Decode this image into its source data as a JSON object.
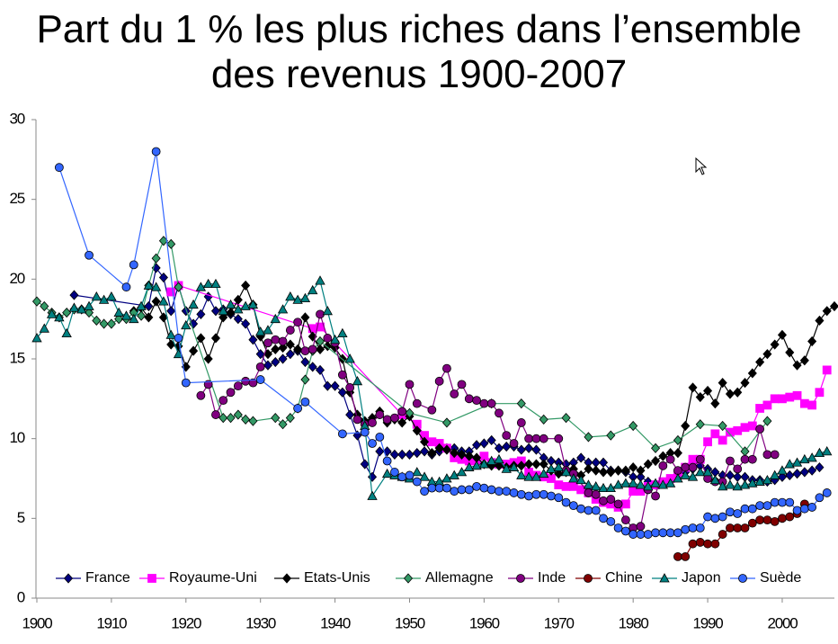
{
  "chart_data": {
    "type": "line",
    "title": "Part du 1 % les plus riches dans l’ensemble des revenus 1900-2007",
    "xlim": [
      1900,
      2007
    ],
    "xticks": [
      1900,
      1910,
      1920,
      1930,
      1940,
      1950,
      1960,
      1970,
      1980,
      1990,
      2000
    ],
    "ylim": [
      0,
      30
    ],
    "yticks": [
      0,
      5,
      10,
      15,
      20,
      25,
      30
    ],
    "grid": false,
    "legend": "bottom",
    "series": [
      {
        "name": "France",
        "color": "#000080",
        "marker": "diamond",
        "x": [
          1905,
          1915,
          1916,
          1917,
          1918,
          1919,
          1920,
          1921,
          1922,
          1923,
          1924,
          1925,
          1926,
          1927,
          1928,
          1929,
          1930,
          1931,
          1932,
          1933,
          1934,
          1935,
          1936,
          1937,
          1938,
          1939,
          1940,
          1941,
          1942,
          1943,
          1944,
          1945,
          1946,
          1947,
          1948,
          1949,
          1950,
          1951,
          1952,
          1953,
          1954,
          1955,
          1956,
          1957,
          1958,
          1959,
          1960,
          1961,
          1962,
          1963,
          1964,
          1965,
          1966,
          1967,
          1968,
          1969,
          1970,
          1971,
          1972,
          1973,
          1974,
          1975,
          1976,
          1977,
          1978,
          1979,
          1980,
          1981,
          1982,
          1983,
          1984,
          1985,
          1986,
          1987,
          1988,
          1989,
          1990,
          1991,
          1992,
          1993,
          1994,
          1995,
          1996,
          1997,
          1998,
          1999,
          2000,
          2001,
          2002,
          2003,
          2004,
          2005
        ],
        "values": [
          19,
          18.3,
          20.7,
          20.1,
          18,
          19.6,
          18,
          17.2,
          17.8,
          18.9,
          18,
          18.1,
          17.8,
          17.5,
          17.2,
          16.2,
          15.3,
          14.6,
          14.8,
          15,
          15.3,
          15.5,
          14.8,
          14.5,
          14.3,
          13.3,
          13.3,
          12.9,
          11.5,
          10.2,
          8.4,
          7.6,
          9.2,
          9.2,
          9,
          9,
          9,
          9.1,
          9.2,
          9,
          9.2,
          9.4,
          9.4,
          9.2,
          9.2,
          9.6,
          9.7,
          9.9,
          9.4,
          9.5,
          9.5,
          9.3,
          9.4,
          9.3,
          8.8,
          8.6,
          8.5,
          8.4,
          8.5,
          8.8,
          8.5,
          8.5,
          8.5,
          8,
          8,
          7.9,
          7.6,
          7.6,
          7.3,
          7.1,
          7.2,
          7.4,
          7.7,
          7.9,
          8.1,
          8.3,
          8.1,
          7.9,
          7.7,
          7.7,
          7.6,
          7.6,
          7.4,
          7.4,
          7.3,
          7.4,
          7.6,
          7.7,
          7.8,
          7.9,
          8,
          8.2
        ]
      },
      {
        "name": "Royaume-Uni",
        "color": "#ff00ff",
        "marker": "square",
        "x": [
          1918,
          1919,
          1937,
          1938,
          1949,
          1951,
          1952,
          1953,
          1954,
          1955,
          1956,
          1957,
          1958,
          1959,
          1960,
          1961,
          1962,
          1963,
          1964,
          1965,
          1966,
          1967,
          1968,
          1969,
          1970,
          1971,
          1972,
          1973,
          1974,
          1975,
          1976,
          1977,
          1978,
          1979,
          1980,
          1981,
          1982,
          1983,
          1984,
          1985,
          1986,
          1987,
          1988,
          1989,
          1990,
          1991,
          1992,
          1993,
          1994,
          1995,
          1996,
          1997,
          1998,
          1999,
          2000,
          2001,
          2002,
          2003,
          2004,
          2005,
          2006
        ],
        "values": [
          19.2,
          19.6,
          16.9,
          17,
          11.5,
          10.9,
          10.2,
          9.8,
          9.7,
          9.4,
          8.8,
          8.7,
          8.6,
          8.6,
          8.9,
          8.5,
          8.4,
          8.4,
          8.5,
          8.6,
          7.9,
          7.7,
          7.6,
          7.5,
          7.1,
          7,
          7,
          6.8,
          6.6,
          6.2,
          6,
          5.9,
          5.7,
          5.9,
          6.7,
          6.7,
          7,
          7.1,
          7.3,
          7.5,
          7.8,
          8.2,
          8.7,
          8.7,
          9.8,
          10.3,
          9.9,
          10.4,
          10.5,
          10.7,
          10.8,
          11.9,
          12.1,
          12.5,
          12.5,
          12.6,
          12.7,
          12.2,
          12.1,
          12.9,
          14.3
        ]
      },
      {
        "name": "Etats-Unis",
        "color": "#000000",
        "marker": "diamond",
        "x": [
          1913,
          1914,
          1915,
          1916,
          1917,
          1918,
          1919,
          1920,
          1921,
          1922,
          1923,
          1924,
          1925,
          1926,
          1927,
          1928,
          1929,
          1930,
          1931,
          1932,
          1933,
          1934,
          1935,
          1936,
          1937,
          1938,
          1939,
          1940,
          1941,
          1942,
          1943,
          1944,
          1945,
          1946,
          1947,
          1948,
          1949,
          1950,
          1951,
          1952,
          1953,
          1954,
          1955,
          1956,
          1957,
          1958,
          1959,
          1960,
          1961,
          1962,
          1963,
          1964,
          1965,
          1966,
          1967,
          1968,
          1969,
          1970,
          1971,
          1972,
          1973,
          1974,
          1975,
          1976,
          1977,
          1978,
          1979,
          1980,
          1981,
          1982,
          1983,
          1984,
          1985,
          1986,
          1987,
          1988,
          1989,
          1990,
          1991,
          1992,
          1993,
          1994,
          1995,
          1996,
          1997,
          1998,
          1999,
          2000,
          2001,
          2002,
          2003,
          2004,
          2005,
          2006,
          2007
        ],
        "values": [
          18,
          18.2,
          17.6,
          18.6,
          17.6,
          15.9,
          15.8,
          14.5,
          15.5,
          16.3,
          15,
          16.3,
          17.6,
          17.9,
          18.7,
          19.6,
          18.4,
          16.4,
          15.3,
          15.6,
          15.7,
          15.9,
          15.6,
          17.6,
          16.4,
          15.6,
          15.8,
          15.7,
          15,
          12.9,
          11.5,
          11.1,
          11.3,
          11.7,
          11,
          11.2,
          11,
          11.4,
          10.5,
          9.8,
          9.1,
          9.4,
          9.3,
          9.1,
          9,
          8.9,
          8.8,
          8.4,
          8.3,
          8.3,
          8.2,
          8.3,
          8.3,
          8.4,
          8.4,
          8.4,
          8,
          7.8,
          7.9,
          8.1,
          7.7,
          8.1,
          8,
          7.9,
          7.9,
          8,
          8,
          8.2,
          8,
          8.4,
          8.6,
          8.9,
          9.1,
          9.1,
          10.8,
          13.2,
          12.6,
          13,
          12.2,
          13.5,
          12.8,
          12.9,
          13.5,
          14.1,
          14.8,
          15.3,
          15.9,
          16.5,
          15.4,
          14.6,
          14.9,
          16.1,
          17.4,
          18,
          18.3
        ]
      },
      {
        "name": "Allemagne",
        "color": "#339966",
        "marker": "diamond",
        "x": [
          1900,
          1901,
          1902,
          1903,
          1904,
          1905,
          1906,
          1907,
          1908,
          1909,
          1910,
          1911,
          1912,
          1913,
          1914,
          1915,
          1916,
          1917,
          1918,
          1919,
          1925,
          1926,
          1927,
          1928,
          1929,
          1932,
          1933,
          1934,
          1935,
          1936,
          1937,
          1938,
          1950,
          1955,
          1961,
          1965,
          1968,
          1971,
          1974,
          1977,
          1980,
          1983,
          1986,
          1989,
          1992,
          1995,
          1998
        ],
        "values": [
          18.6,
          18.3,
          17.9,
          17.6,
          17.9,
          18.1,
          18.1,
          17.9,
          17.4,
          17.2,
          17.2,
          17.5,
          17.5,
          17.9,
          17.7,
          19.6,
          21.3,
          22.4,
          22.2,
          19.5,
          11.3,
          11.3,
          11.5,
          11.2,
          11.1,
          11.3,
          10.9,
          11.3,
          11.9,
          13.7,
          15.5,
          16.1,
          11.6,
          11,
          12.2,
          12.2,
          11.2,
          11.3,
          10.1,
          10.2,
          10.8,
          9.4,
          9.9,
          10.9,
          10.8,
          9.2,
          11.1
        ]
      },
      {
        "name": "Inde",
        "color": "#800080",
        "marker": "circle",
        "x": [
          1922,
          1923,
          1924,
          1925,
          1926,
          1927,
          1928,
          1929,
          1930,
          1931,
          1932,
          1933,
          1934,
          1935,
          1936,
          1937,
          1938,
          1939,
          1940,
          1941,
          1942,
          1943,
          1944,
          1945,
          1946,
          1947,
          1948,
          1949,
          1950,
          1951,
          1953,
          1954,
          1955,
          1956,
          1957,
          1958,
          1959,
          1960,
          1961,
          1962,
          1963,
          1964,
          1965,
          1966,
          1967,
          1968,
          1970,
          1971,
          1972,
          1974,
          1975,
          1976,
          1977,
          1978,
          1979,
          1980,
          1981,
          1982,
          1983,
          1984,
          1985,
          1986,
          1987,
          1988,
          1989,
          1990,
          1991,
          1992,
          1993,
          1994,
          1995,
          1996,
          1997,
          1998,
          1999
        ],
        "values": [
          12.7,
          13.4,
          11.5,
          12.4,
          12.9,
          13.3,
          13.6,
          13.5,
          14.5,
          16,
          16.2,
          16.1,
          16.8,
          17.3,
          15.5,
          15.6,
          17.8,
          16.3,
          16,
          14,
          13.2,
          11.2,
          10.9,
          11,
          11.5,
          11.2,
          11.3,
          11.7,
          13.4,
          12.2,
          11.8,
          13.6,
          14.4,
          12.8,
          13.4,
          12.5,
          12.4,
          12.2,
          12.2,
          11.6,
          10.2,
          9.7,
          11,
          10,
          10,
          10,
          10,
          8,
          7.8,
          6.6,
          6.5,
          6.1,
          6.2,
          5.9,
          4.9,
          4.4,
          4.5,
          6.8,
          6.4,
          8.3,
          8.7,
          8,
          8.2,
          8.2,
          8.7,
          7.5,
          7.3,
          7.3,
          8.6,
          8.1,
          8.7,
          8.7,
          10.6,
          9,
          9
        ]
      },
      {
        "name": "Chine",
        "color": "#800000",
        "marker": "circle",
        "x": [
          1986,
          1987,
          1988,
          1989,
          1990,
          1991,
          1992,
          1993,
          1994,
          1995,
          1996,
          1997,
          1998,
          1999,
          2000,
          2001,
          2002,
          2003
        ],
        "values": [
          2.6,
          2.6,
          3.4,
          3.5,
          3.4,
          3.4,
          4,
          4.4,
          4.4,
          4.4,
          4.7,
          4.9,
          4.9,
          4.8,
          5,
          5.1,
          5.3,
          5.9
        ]
      },
      {
        "name": "Japon",
        "color": "#008080",
        "marker": "triangle",
        "x": [
          1900,
          1901,
          1902,
          1903,
          1904,
          1905,
          1906,
          1907,
          1908,
          1909,
          1910,
          1911,
          1912,
          1913,
          1914,
          1915,
          1916,
          1917,
          1918,
          1919,
          1920,
          1921,
          1922,
          1923,
          1924,
          1925,
          1926,
          1927,
          1928,
          1929,
          1930,
          1931,
          1932,
          1933,
          1934,
          1935,
          1936,
          1937,
          1938,
          1939,
          1940,
          1941,
          1942,
          1943,
          1944,
          1945,
          1947,
          1948,
          1949,
          1950,
          1951,
          1952,
          1953,
          1954,
          1955,
          1956,
          1957,
          1958,
          1959,
          1960,
          1961,
          1962,
          1963,
          1964,
          1965,
          1966,
          1967,
          1968,
          1969,
          1970,
          1971,
          1972,
          1973,
          1974,
          1975,
          1976,
          1977,
          1978,
          1979,
          1980,
          1981,
          1982,
          1983,
          1984,
          1985,
          1986,
          1987,
          1988,
          1989,
          1990,
          1991,
          1992,
          1993,
          1994,
          1995,
          1996,
          1997,
          1998,
          1999,
          2000,
          2001,
          2002,
          2003,
          2004,
          2005,
          2006
        ],
        "values": [
          16.3,
          16.9,
          17.8,
          17.6,
          16.6,
          18.2,
          18.1,
          18.3,
          18.9,
          18.7,
          18.9,
          17.9,
          17.7,
          17.5,
          18.3,
          19.6,
          19.5,
          18.6,
          16.5,
          15.3,
          17.1,
          18.4,
          19.5,
          19.7,
          19.7,
          18,
          18.4,
          18.1,
          18.3,
          18.4,
          16.7,
          16.8,
          17.5,
          18.1,
          18.9,
          18.7,
          18.8,
          19.3,
          19.9,
          18,
          16.2,
          16.6,
          15,
          13.6,
          10.8,
          6.4,
          7.8,
          7.7,
          7.6,
          7.5,
          7.9,
          7.6,
          7.3,
          7.3,
          7.5,
          7.7,
          7.9,
          8.2,
          8.3,
          8.4,
          8.6,
          8.7,
          8.1,
          8.2,
          7.7,
          7.6,
          7.6,
          7.8,
          8.1,
          8.2,
          7.9,
          7.5,
          7.4,
          7.1,
          7,
          6.9,
          6.9,
          7.1,
          7.2,
          7.2,
          7.1,
          7,
          7.2,
          7.1,
          7.2,
          7.5,
          7.7,
          7.6,
          7.9,
          7.9,
          7.4,
          7,
          7.1,
          7,
          7.1,
          7.2,
          7.3,
          7.4,
          7.7,
          8,
          8.4,
          8.5,
          8.7,
          8.8,
          9.1,
          9.2
        ]
      },
      {
        "name": "Suède",
        "color": "#3366ff",
        "marker": "circle",
        "x": [
          1903,
          1907,
          1912,
          1913,
          1916,
          1919,
          1920,
          1930,
          1935,
          1936,
          1941,
          1944,
          1945,
          1946,
          1947,
          1948,
          1949,
          1950,
          1951,
          1952,
          1953,
          1954,
          1955,
          1956,
          1957,
          1958,
          1959,
          1960,
          1961,
          1962,
          1963,
          1964,
          1965,
          1966,
          1967,
          1968,
          1969,
          1970,
          1971,
          1972,
          1973,
          1974,
          1975,
          1976,
          1977,
          1978,
          1979,
          1980,
          1981,
          1982,
          1983,
          1984,
          1985,
          1986,
          1987,
          1988,
          1989,
          1990,
          1991,
          1992,
          1993,
          1994,
          1995,
          1996,
          1997,
          1998,
          1999,
          2000,
          2001,
          2002,
          2003,
          2004,
          2005,
          2006
        ],
        "values": [
          27,
          21.5,
          19.5,
          20.9,
          28,
          16.3,
          13.5,
          13.7,
          11.9,
          12.3,
          10.3,
          10.4,
          9.7,
          10.1,
          8.6,
          7.9,
          7.6,
          7.7,
          7.3,
          6.7,
          6.9,
          6.9,
          6.9,
          6.7,
          6.8,
          6.8,
          7,
          6.9,
          6.8,
          6.7,
          6.7,
          6.6,
          6.5,
          6.4,
          6.5,
          6.5,
          6.4,
          6.3,
          6,
          5.8,
          5.6,
          5.5,
          5.5,
          5,
          4.8,
          4.4,
          4.2,
          4,
          4,
          4,
          4.1,
          4.1,
          4.1,
          4.1,
          4.3,
          4.4,
          4.4,
          5.1,
          5,
          5.1,
          5.4,
          5.3,
          5.6,
          5.6,
          5.8,
          5.8,
          6,
          6,
          6,
          5.5,
          5.6,
          5.7,
          6.3,
          6.6
        ]
      }
    ]
  }
}
